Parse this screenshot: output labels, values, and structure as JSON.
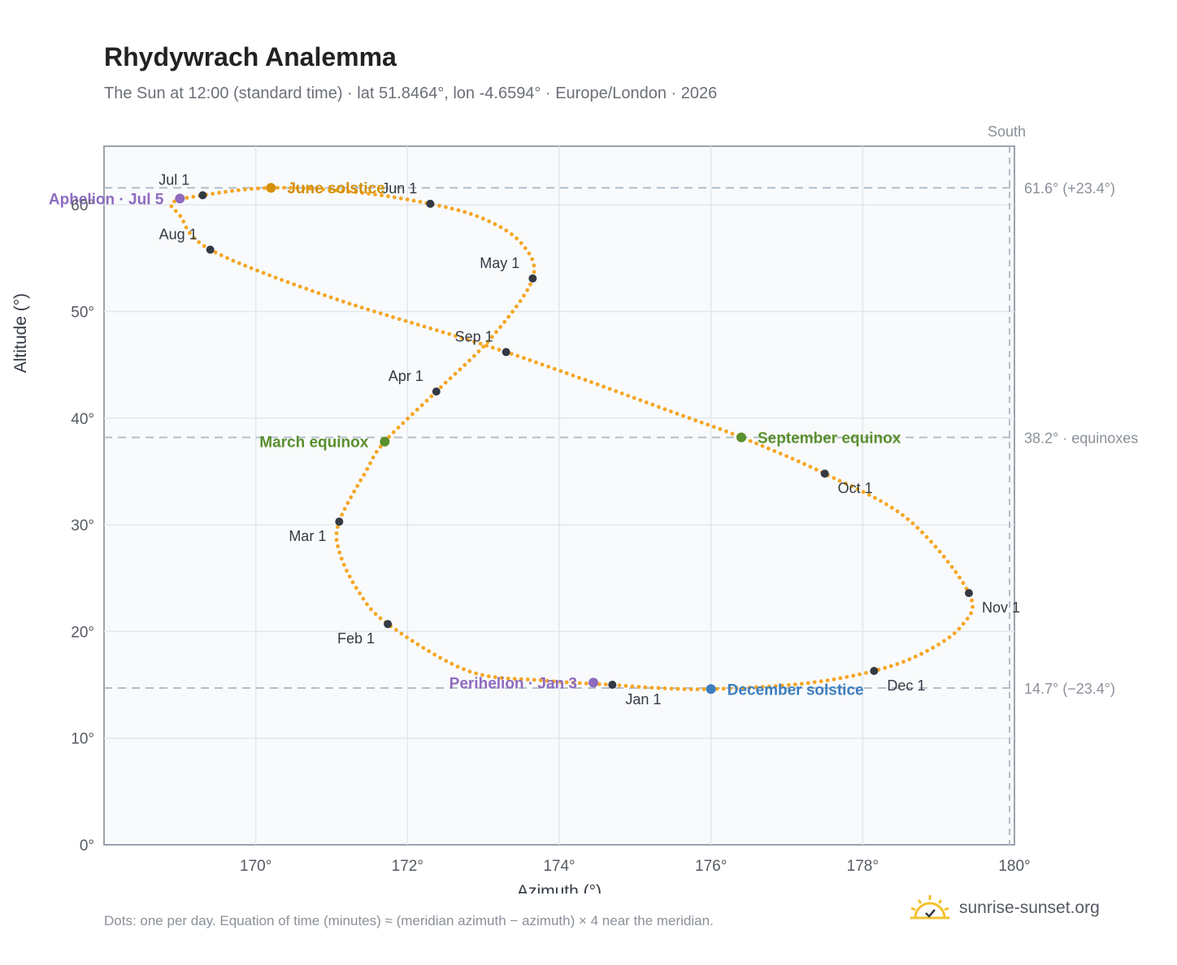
{
  "title": "Rhydywrach Analemma",
  "subtitle": "The Sun at 12:00 (standard time) · lat 51.8464°, lon -4.6594° · Europe/London · 2026",
  "footnote": "Dots: one per day. Equation of time (minutes) ≈ (meridian azimuth − azimuth) × 4 near the meridian.",
  "brand": "sunrise-sunset.org",
  "colors": {
    "curve": "#f5a623",
    "month_dot": "#333a44",
    "june_solstice": "#d4900a",
    "december_solstice": "#3d7ebf",
    "equinox": "#5a8f2e",
    "aphelion_perihelion": "#8e6bbf",
    "brand_sun": "#f2c12e"
  },
  "chart_data": {
    "type": "scatter",
    "xlabel": "Azimuth (°)",
    "ylabel": "Altitude (°)",
    "xlim": [
      168.0,
      180.0
    ],
    "ylim": [
      0,
      65.5
    ],
    "xticks": [
      "170°",
      "172°",
      "174°",
      "176°",
      "178°",
      "180°"
    ],
    "xtick_values": [
      170,
      172,
      174,
      176,
      178,
      180
    ],
    "yticks": [
      "0°",
      "10°",
      "20°",
      "30°",
      "40°",
      "50°",
      "60°"
    ],
    "ytick_values": [
      0,
      10,
      20,
      30,
      40,
      50,
      60
    ],
    "grid": true,
    "south_label": "South",
    "south_azimuth": 180,
    "reference_lines": [
      {
        "y": 61.6,
        "label": "61.6° (+23.4°)"
      },
      {
        "y": 38.2,
        "label": "38.2° · equinoxes"
      },
      {
        "y": 14.7,
        "label": "14.7° (−23.4°)"
      }
    ],
    "curve_anchors": [
      [
        174.7,
        15.0
      ],
      [
        173.8,
        15.4
      ],
      [
        172.8,
        16.3
      ],
      [
        171.74,
        20.7
      ],
      [
        171.35,
        23.8
      ],
      [
        171.1,
        27.5
      ],
      [
        171.1,
        30.3
      ],
      [
        171.45,
        35.0
      ],
      [
        171.7,
        37.8
      ],
      [
        172.38,
        42.5
      ],
      [
        173.1,
        47.5
      ],
      [
        173.65,
        53.1
      ],
      [
        173.5,
        56.4
      ],
      [
        173.0,
        58.7
      ],
      [
        172.3,
        60.1
      ],
      [
        171.3,
        61.2
      ],
      [
        170.2,
        61.6
      ],
      [
        169.3,
        60.9
      ],
      [
        168.9,
        60.2
      ],
      [
        169.0,
        59.0
      ],
      [
        169.4,
        55.8
      ],
      [
        171.0,
        51.3
      ],
      [
        173.3,
        46.2
      ],
      [
        175.6,
        40.3
      ],
      [
        176.4,
        38.2
      ],
      [
        177.5,
        34.8
      ],
      [
        178.6,
        30.5
      ],
      [
        179.4,
        23.6
      ],
      [
        179.3,
        20.5
      ],
      [
        178.8,
        18.0
      ],
      [
        178.15,
        16.3
      ],
      [
        177.2,
        15.1
      ],
      [
        176.0,
        14.6
      ],
      [
        175.3,
        14.7
      ],
      [
        174.7,
        15.0
      ]
    ],
    "month_markers": [
      {
        "label": "Jan 1",
        "az": 174.7,
        "alt": 15.0,
        "pos": "below-right"
      },
      {
        "label": "Feb 1",
        "az": 171.74,
        "alt": 20.7,
        "pos": "below-left"
      },
      {
        "label": "Mar 1",
        "az": 171.1,
        "alt": 30.3,
        "pos": "below-left"
      },
      {
        "label": "Apr 1",
        "az": 172.38,
        "alt": 42.5,
        "pos": "above-left"
      },
      {
        "label": "May 1",
        "az": 173.65,
        "alt": 53.1,
        "pos": "above-left"
      },
      {
        "label": "Jun 1",
        "az": 172.3,
        "alt": 60.1,
        "pos": "above-left"
      },
      {
        "label": "Jul 1",
        "az": 169.3,
        "alt": 60.9,
        "pos": "above-left"
      },
      {
        "label": "Aug 1",
        "az": 169.4,
        "alt": 55.8,
        "pos": "above-left"
      },
      {
        "label": "Sep 1",
        "az": 173.3,
        "alt": 46.2,
        "pos": "above-left"
      },
      {
        "label": "Oct 1",
        "az": 177.5,
        "alt": 34.8,
        "pos": "below-right"
      },
      {
        "label": "Nov 1",
        "az": 179.4,
        "alt": 23.6,
        "pos": "below-right"
      },
      {
        "label": "Dec 1",
        "az": 178.15,
        "alt": 16.3,
        "pos": "below-right"
      }
    ],
    "events": [
      {
        "label": "June solstice",
        "az": 170.2,
        "alt": 61.6,
        "color_key": "june_solstice",
        "side": "right"
      },
      {
        "label": "December solstice",
        "az": 176.0,
        "alt": 14.6,
        "color_key": "december_solstice",
        "side": "right"
      },
      {
        "label": "March equinox",
        "az": 171.7,
        "alt": 37.8,
        "color_key": "equinox",
        "side": "left"
      },
      {
        "label": "September equinox",
        "az": 176.4,
        "alt": 38.2,
        "color_key": "equinox",
        "side": "right"
      },
      {
        "label": "Aphelion · Jul 5",
        "az": 169.0,
        "alt": 60.6,
        "color_key": "aphelion_perihelion",
        "side": "left"
      },
      {
        "label": "Perihelion · Jan 3",
        "az": 174.45,
        "alt": 15.2,
        "color_key": "aphelion_perihelion",
        "side": "left"
      }
    ]
  }
}
